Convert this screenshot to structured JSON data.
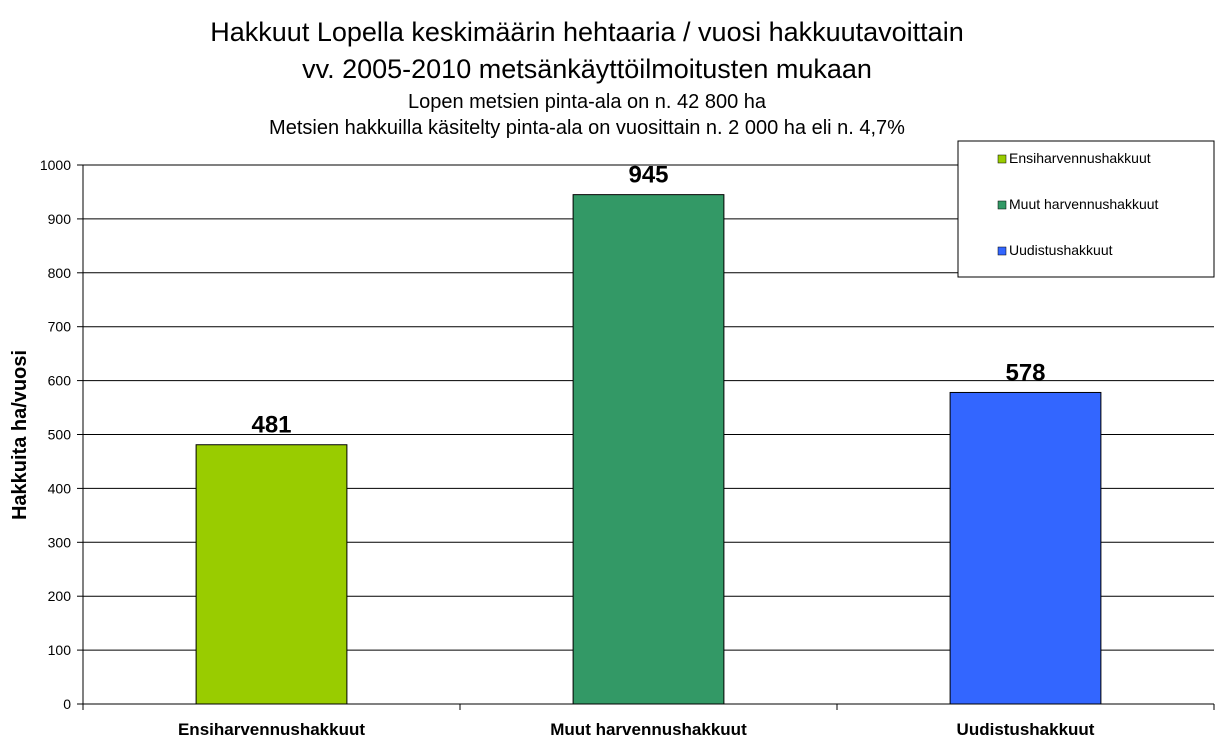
{
  "chart_data": {
    "type": "bar",
    "title": "Hakkuut Lopella  keskimäärin hehtaaria / vuosi hakkuutavoittain",
    "title_line2": "vv. 2005-2010 metsänkäyttöilmoitusten mukaan",
    "subtitle": "Lopen metsien pinta-ala on n. 42 800 ha",
    "subtitle_line2": "Metsien hakkuilla käsitelty pinta-ala on vuosittain n. 2 000 ha eli n. 4,7%",
    "xlabel": "",
    "ylabel": "Hakkuita ha/vuosi",
    "ylim": [
      0,
      1000
    ],
    "ytick_step": 100,
    "grid": true,
    "legend_position": "top-right",
    "categories": [
      "Ensiharvennushakkuut",
      "Muut harvennushakkuut",
      "Uudistushakkuut"
    ],
    "values": [
      481,
      945,
      578
    ],
    "data_labels": [
      "481",
      "945",
      "578"
    ],
    "colors": [
      "#99CC00",
      "#339966",
      "#3366FF"
    ],
    "legend": [
      "Ensiharvennushakkuut",
      "Muut harvennushakkuut",
      "Uudistushakkuut"
    ]
  }
}
